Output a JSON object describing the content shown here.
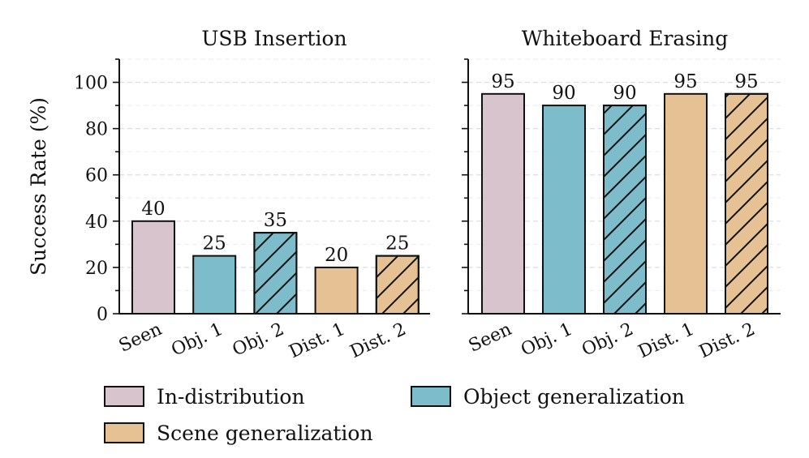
{
  "chart_data": [
    {
      "type": "bar",
      "title": "USB Insertion",
      "ylabel": "Success Rate (%)",
      "xlabel": "",
      "ylim": [
        0,
        110
      ],
      "yticks": [
        0,
        20,
        40,
        60,
        80,
        100
      ],
      "grid": "horizontal dashed",
      "categories": [
        "Seen",
        "Obj. 1",
        "Obj. 2",
        "Dist. 1",
        "Dist. 2"
      ],
      "values": [
        40,
        25,
        35,
        20,
        25
      ],
      "fill_colors": [
        "#d8c4cd",
        "#7dbccb",
        "#7dbccb",
        "#e6c194",
        "#e6c194"
      ],
      "hatched": [
        false,
        false,
        true,
        false,
        true
      ]
    },
    {
      "type": "bar",
      "title": "Whiteboard Erasing",
      "ylabel": "",
      "xlabel": "",
      "ylim": [
        0,
        110
      ],
      "yticks": [
        0,
        20,
        40,
        60,
        80,
        100
      ],
      "grid": "horizontal dashed",
      "categories": [
        "Seen",
        "Obj. 1",
        "Obj. 2",
        "Dist. 1",
        "Dist. 2"
      ],
      "values": [
        95,
        90,
        90,
        95,
        95
      ],
      "fill_colors": [
        "#d8c4cd",
        "#7dbccb",
        "#7dbccb",
        "#e6c194",
        "#e6c194"
      ],
      "hatched": [
        false,
        false,
        true,
        false,
        true
      ]
    }
  ],
  "legend": {
    "placement": "bottom",
    "items": [
      {
        "label": "In-distribution",
        "color": "#d8c4cd"
      },
      {
        "label": "Object generalization",
        "color": "#7dbccb"
      },
      {
        "label": "Scene generalization",
        "color": "#e6c194"
      }
    ]
  }
}
